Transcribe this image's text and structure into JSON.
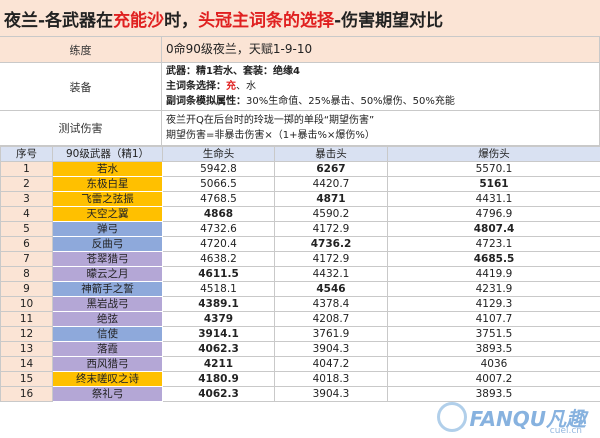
{
  "title": {
    "part1": "夜兰-各武器在",
    "part2": "充能沙",
    "part3": "时，",
    "part4": "头冠主词条的选择",
    "part5": "-伤害期望对比"
  },
  "info": {
    "level_label": "练度",
    "level_value": "0命90级夜兰，天赋1-9-10",
    "equip_label": "装备",
    "equip_weapon_label": "武器：",
    "equip_weapon_value": "精1若水、套装：绝缘4",
    "equip_main_label": "主词条选择：",
    "equip_main_red": "充",
    "equip_main_rest": "、水",
    "equip_sub_label": "副词条模拟属性：",
    "equip_sub_value": "30%生命值、25%暴击、50%爆伤、50%充能",
    "test_label": "测试伤害",
    "test_line1": "夜兰开Q在后台时的玲珑一掷的单段“期望伤害”",
    "test_line2": "期望伤害=非暴击伤害×（1+暴击%×爆伤%）"
  },
  "table": {
    "headers": [
      "序号",
      "90级武器（精1）",
      "生命头",
      "暴击头",
      "爆伤头"
    ],
    "rows": [
      {
        "n": "1",
        "weapon": "若水",
        "c": "gold",
        "v": [
          "5942.8",
          "6267",
          "5570.1"
        ],
        "max": 1
      },
      {
        "n": "2",
        "weapon": "东极白星",
        "c": "gold",
        "v": [
          "5066.5",
          "4420.7",
          "5161"
        ],
        "max": 2
      },
      {
        "n": "3",
        "weapon": "飞雷之弦振",
        "c": "gold",
        "v": [
          "4768.5",
          "4871",
          "4431.1"
        ],
        "max": 1
      },
      {
        "n": "4",
        "weapon": "天空之翼",
        "c": "gold",
        "v": [
          "4868",
          "4590.2",
          "4796.9"
        ],
        "max": 0
      },
      {
        "n": "5",
        "weapon": "弹弓",
        "c": "blue",
        "v": [
          "4732.6",
          "4172.9",
          "4807.4"
        ],
        "max": 2
      },
      {
        "n": "6",
        "weapon": "反曲弓",
        "c": "blue",
        "v": [
          "4720.4",
          "4736.2",
          "4723.1"
        ],
        "max": 1
      },
      {
        "n": "7",
        "weapon": "苍翠猎弓",
        "c": "purple",
        "v": [
          "4638.2",
          "4172.9",
          "4685.5"
        ],
        "max": 2
      },
      {
        "n": "8",
        "weapon": "曚云之月",
        "c": "purple",
        "v": [
          "4611.5",
          "4432.1",
          "4419.9"
        ],
        "max": 0
      },
      {
        "n": "9",
        "weapon": "神箭手之誓",
        "c": "blue",
        "v": [
          "4518.1",
          "4546",
          "4231.9"
        ],
        "max": 1
      },
      {
        "n": "10",
        "weapon": "黑岩战弓",
        "c": "purple",
        "v": [
          "4389.1",
          "4378.4",
          "4129.3"
        ],
        "max": 0
      },
      {
        "n": "11",
        "weapon": "绝弦",
        "c": "purple",
        "v": [
          "4379",
          "4208.7",
          "4107.7"
        ],
        "max": 0
      },
      {
        "n": "12",
        "weapon": "信使",
        "c": "blue",
        "v": [
          "3914.1",
          "3761.9",
          "3751.5"
        ],
        "max": 0
      },
      {
        "n": "13",
        "weapon": "落霞",
        "c": "purple",
        "v": [
          "4062.3",
          "3904.3",
          "3893.5"
        ],
        "max": 0
      },
      {
        "n": "14",
        "weapon": "西风猎弓",
        "c": "purple",
        "v": [
          "4211",
          "4047.2",
          "4036"
        ],
        "max": 0
      },
      {
        "n": "15",
        "weapon": "终末嗟叹之诗",
        "c": "gold",
        "v": [
          "4180.9",
          "4018.3",
          "4007.2"
        ],
        "max": 0
      },
      {
        "n": "16",
        "weapon": "祭礼弓",
        "c": "purple",
        "v": [
          "4062.3",
          "3904.3",
          "3893.5"
        ],
        "max": 0
      }
    ]
  },
  "watermark": {
    "text": "FANQU凡趣",
    "sub": "cuel.cn"
  }
}
